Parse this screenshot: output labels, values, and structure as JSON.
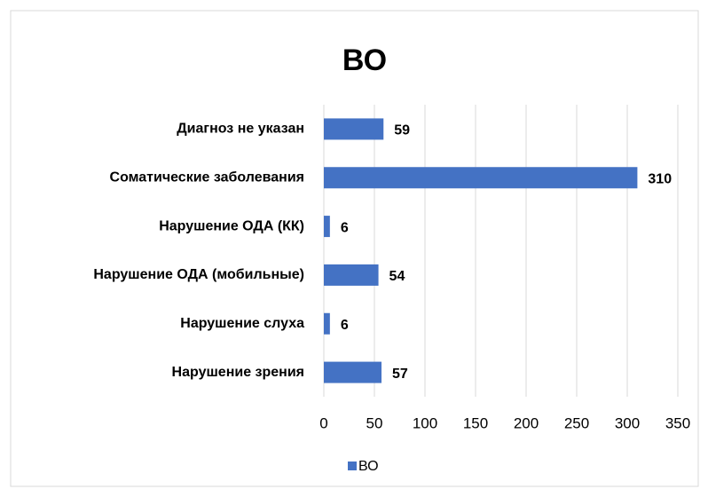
{
  "chart_data": {
    "type": "barh",
    "title": "ВО",
    "categories": [
      "Диагноз не указан",
      "Соматические заболевания",
      "Нарушение ОДА (КК)",
      "Нарушение ОДА (мобильные)",
      "Нарушение слуха",
      "Нарушение зрения"
    ],
    "series": [
      {
        "name": "ВО",
        "color": "#4472c4",
        "values": [
          59,
          310,
          6,
          54,
          6,
          57
        ]
      }
    ],
    "xlim": [
      0,
      350
    ],
    "xticks": [
      0,
      50,
      100,
      150,
      200,
      250,
      300,
      350
    ],
    "grid": true,
    "legend": "bottom"
  }
}
